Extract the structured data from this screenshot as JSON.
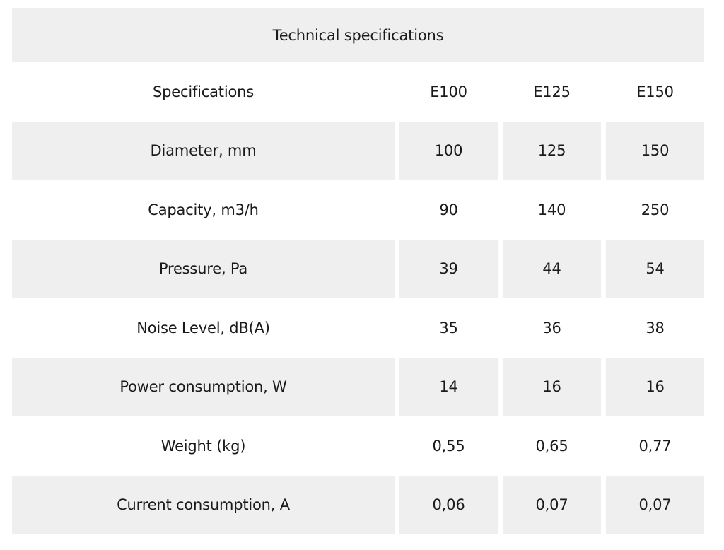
{
  "table": {
    "title": "Technical specifications",
    "header": {
      "label": "Specifications",
      "models": [
        "E100",
        "E125",
        "E150"
      ]
    },
    "rows": [
      {
        "label": "Diameter, mm",
        "values": [
          "100",
          "125",
          "150"
        ]
      },
      {
        "label": "Capacity, m3/h",
        "values": [
          "90",
          "140",
          "250"
        ]
      },
      {
        "label": "Pressure, Pa",
        "values": [
          "39",
          "44",
          "54"
        ]
      },
      {
        "label": "Noise Level, dB(A)",
        "values": [
          "35",
          "36",
          "38"
        ]
      },
      {
        "label": "Power consumption, W",
        "values": [
          "14",
          "16",
          "16"
        ]
      },
      {
        "label": "Weight (kg)",
        "values": [
          "0,55",
          "0,65",
          "0,77"
        ]
      },
      {
        "label": "Current consumption, A",
        "values": [
          "0,06",
          "0,07",
          "0,07"
        ]
      }
    ]
  }
}
